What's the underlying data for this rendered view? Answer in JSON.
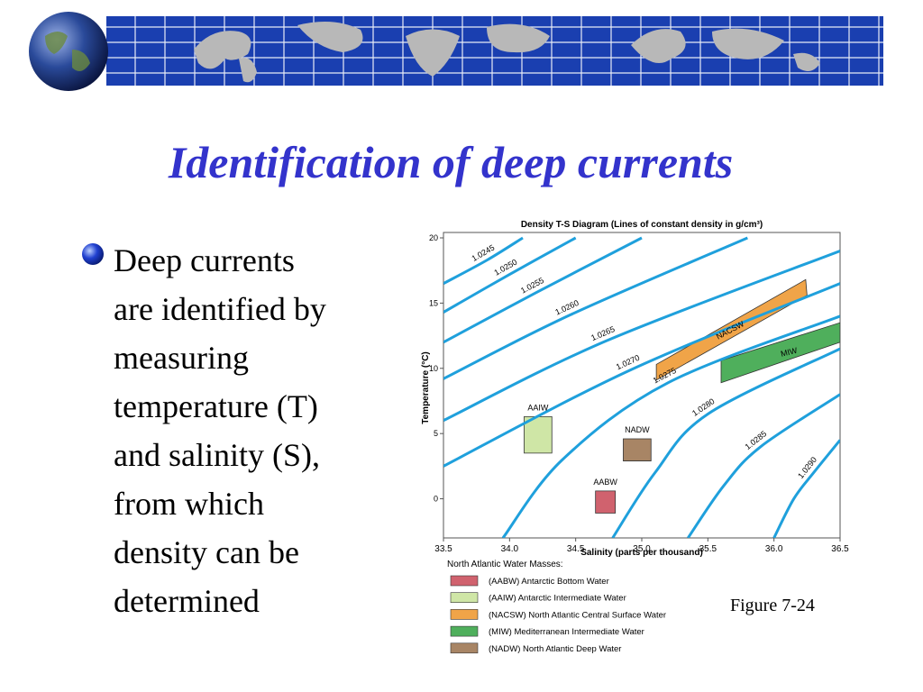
{
  "slide": {
    "title": "Identification of deep currents",
    "bullet_lines": [
      "Deep currents",
      "are identified by",
      "measuring",
      "temperature (T)",
      "and salinity (S),",
      "from which",
      "density can be",
      "determined"
    ],
    "caption": "Figure 7-24"
  },
  "chart_data": {
    "type": "ts-diagram",
    "title": "Density T-S Diagram (Lines of constant density in g/cm³)",
    "x_label": "Salinity (parts per thousand)",
    "y_label": "Temperature (°C)",
    "xlim": [
      33.5,
      36.5
    ],
    "ylim": [
      -3,
      20
    ],
    "xticks": [
      33.5,
      {
        "value": 34,
        "label": "34.0"
      },
      34.5,
      {
        "value": 35,
        "label": "35.0"
      },
      35.5,
      {
        "value": 36,
        "label": "36.0"
      },
      36.5
    ],
    "yticks": [
      0,
      5,
      10,
      15,
      20
    ],
    "isopycnal_color": "#1fa0dc",
    "isopycnals": [
      {
        "name": "1.0245",
        "x": [
          33.5,
          33.83,
          34.1
        ],
        "y": [
          16.5,
          18.3,
          20
        ]
      },
      {
        "name": "1.0250",
        "x": [
          33.5,
          34.0,
          34.5
        ],
        "y": [
          14.3,
          17.2,
          20
        ]
      },
      {
        "name": "1.0255",
        "x": [
          33.5,
          34.2,
          35.0
        ],
        "y": [
          12.0,
          15.8,
          20
        ]
      },
      {
        "name": "1.0260",
        "x": [
          33.5,
          34.46,
          35.8
        ],
        "y": [
          9.2,
          14.1,
          20
        ]
      },
      {
        "name": "1.0265",
        "x": [
          33.5,
          34.73,
          36.5
        ],
        "y": [
          6.0,
          12.1,
          19
        ]
      },
      {
        "name": "1.0270",
        "x": [
          33.5,
          34.92,
          36.5
        ],
        "y": [
          2.5,
          9.9,
          16.5
        ]
      },
      {
        "name": "1.0275",
        "x": [
          33.95,
          34.4,
          35.2,
          36.5
        ],
        "y": [
          -3,
          3,
          8.9,
          14
        ]
      },
      {
        "name": "1.0280",
        "x": [
          34.78,
          35.1,
          35.5,
          36.5
        ],
        "y": [
          -3,
          2,
          6.5,
          11.5
        ]
      },
      {
        "name": "1.0285",
        "x": [
          35.35,
          35.62,
          35.9,
          36.5
        ],
        "y": [
          -3,
          1,
          4,
          8
        ]
      },
      {
        "name": "1.0290",
        "x": [
          36.0,
          36.15,
          36.3,
          36.5
        ],
        "y": [
          -3,
          0,
          2,
          4.5
        ]
      }
    ],
    "legend_title": "North Atlantic Water Masses:",
    "regions": [
      {
        "name": "AABW",
        "legend": "(AABW) Antarctic Bottom Water",
        "color": "#d0626e",
        "x": [
          34.65,
          34.8,
          34.8,
          34.65
        ],
        "y": [
          -1.1,
          -1.1,
          0.6,
          0.6
        ]
      },
      {
        "name": "AAIW",
        "legend": "(AAIW) Antarctic Intermediate Water",
        "color": "#cfe6a6",
        "x": [
          34.11,
          34.32,
          34.32,
          34.11
        ],
        "y": [
          3.5,
          3.5,
          6.3,
          6.3
        ]
      },
      {
        "name": "NACSW",
        "legend": "(NACSW) North Atlantic Central Surface Water",
        "color": "#f0a448",
        "x": [
          35.11,
          36.25,
          36.24,
          35.11
        ],
        "y": [
          9.1,
          15.6,
          16.8,
          10.3
        ]
      },
      {
        "name": "MIW",
        "legend": "(MIW) Mediterranean Intermediate Water",
        "color": "#4faf5c",
        "x": [
          35.6,
          36.5,
          36.5,
          35.6
        ],
        "y": [
          8.9,
          12.0,
          13.5,
          10.6
        ]
      },
      {
        "name": "NADW",
        "legend": "(NADW) North Atlantic Deep Water",
        "color": "#a88565",
        "x": [
          34.86,
          35.07,
          35.07,
          34.86
        ],
        "y": [
          2.9,
          2.9,
          4.6,
          4.6
        ]
      }
    ]
  }
}
